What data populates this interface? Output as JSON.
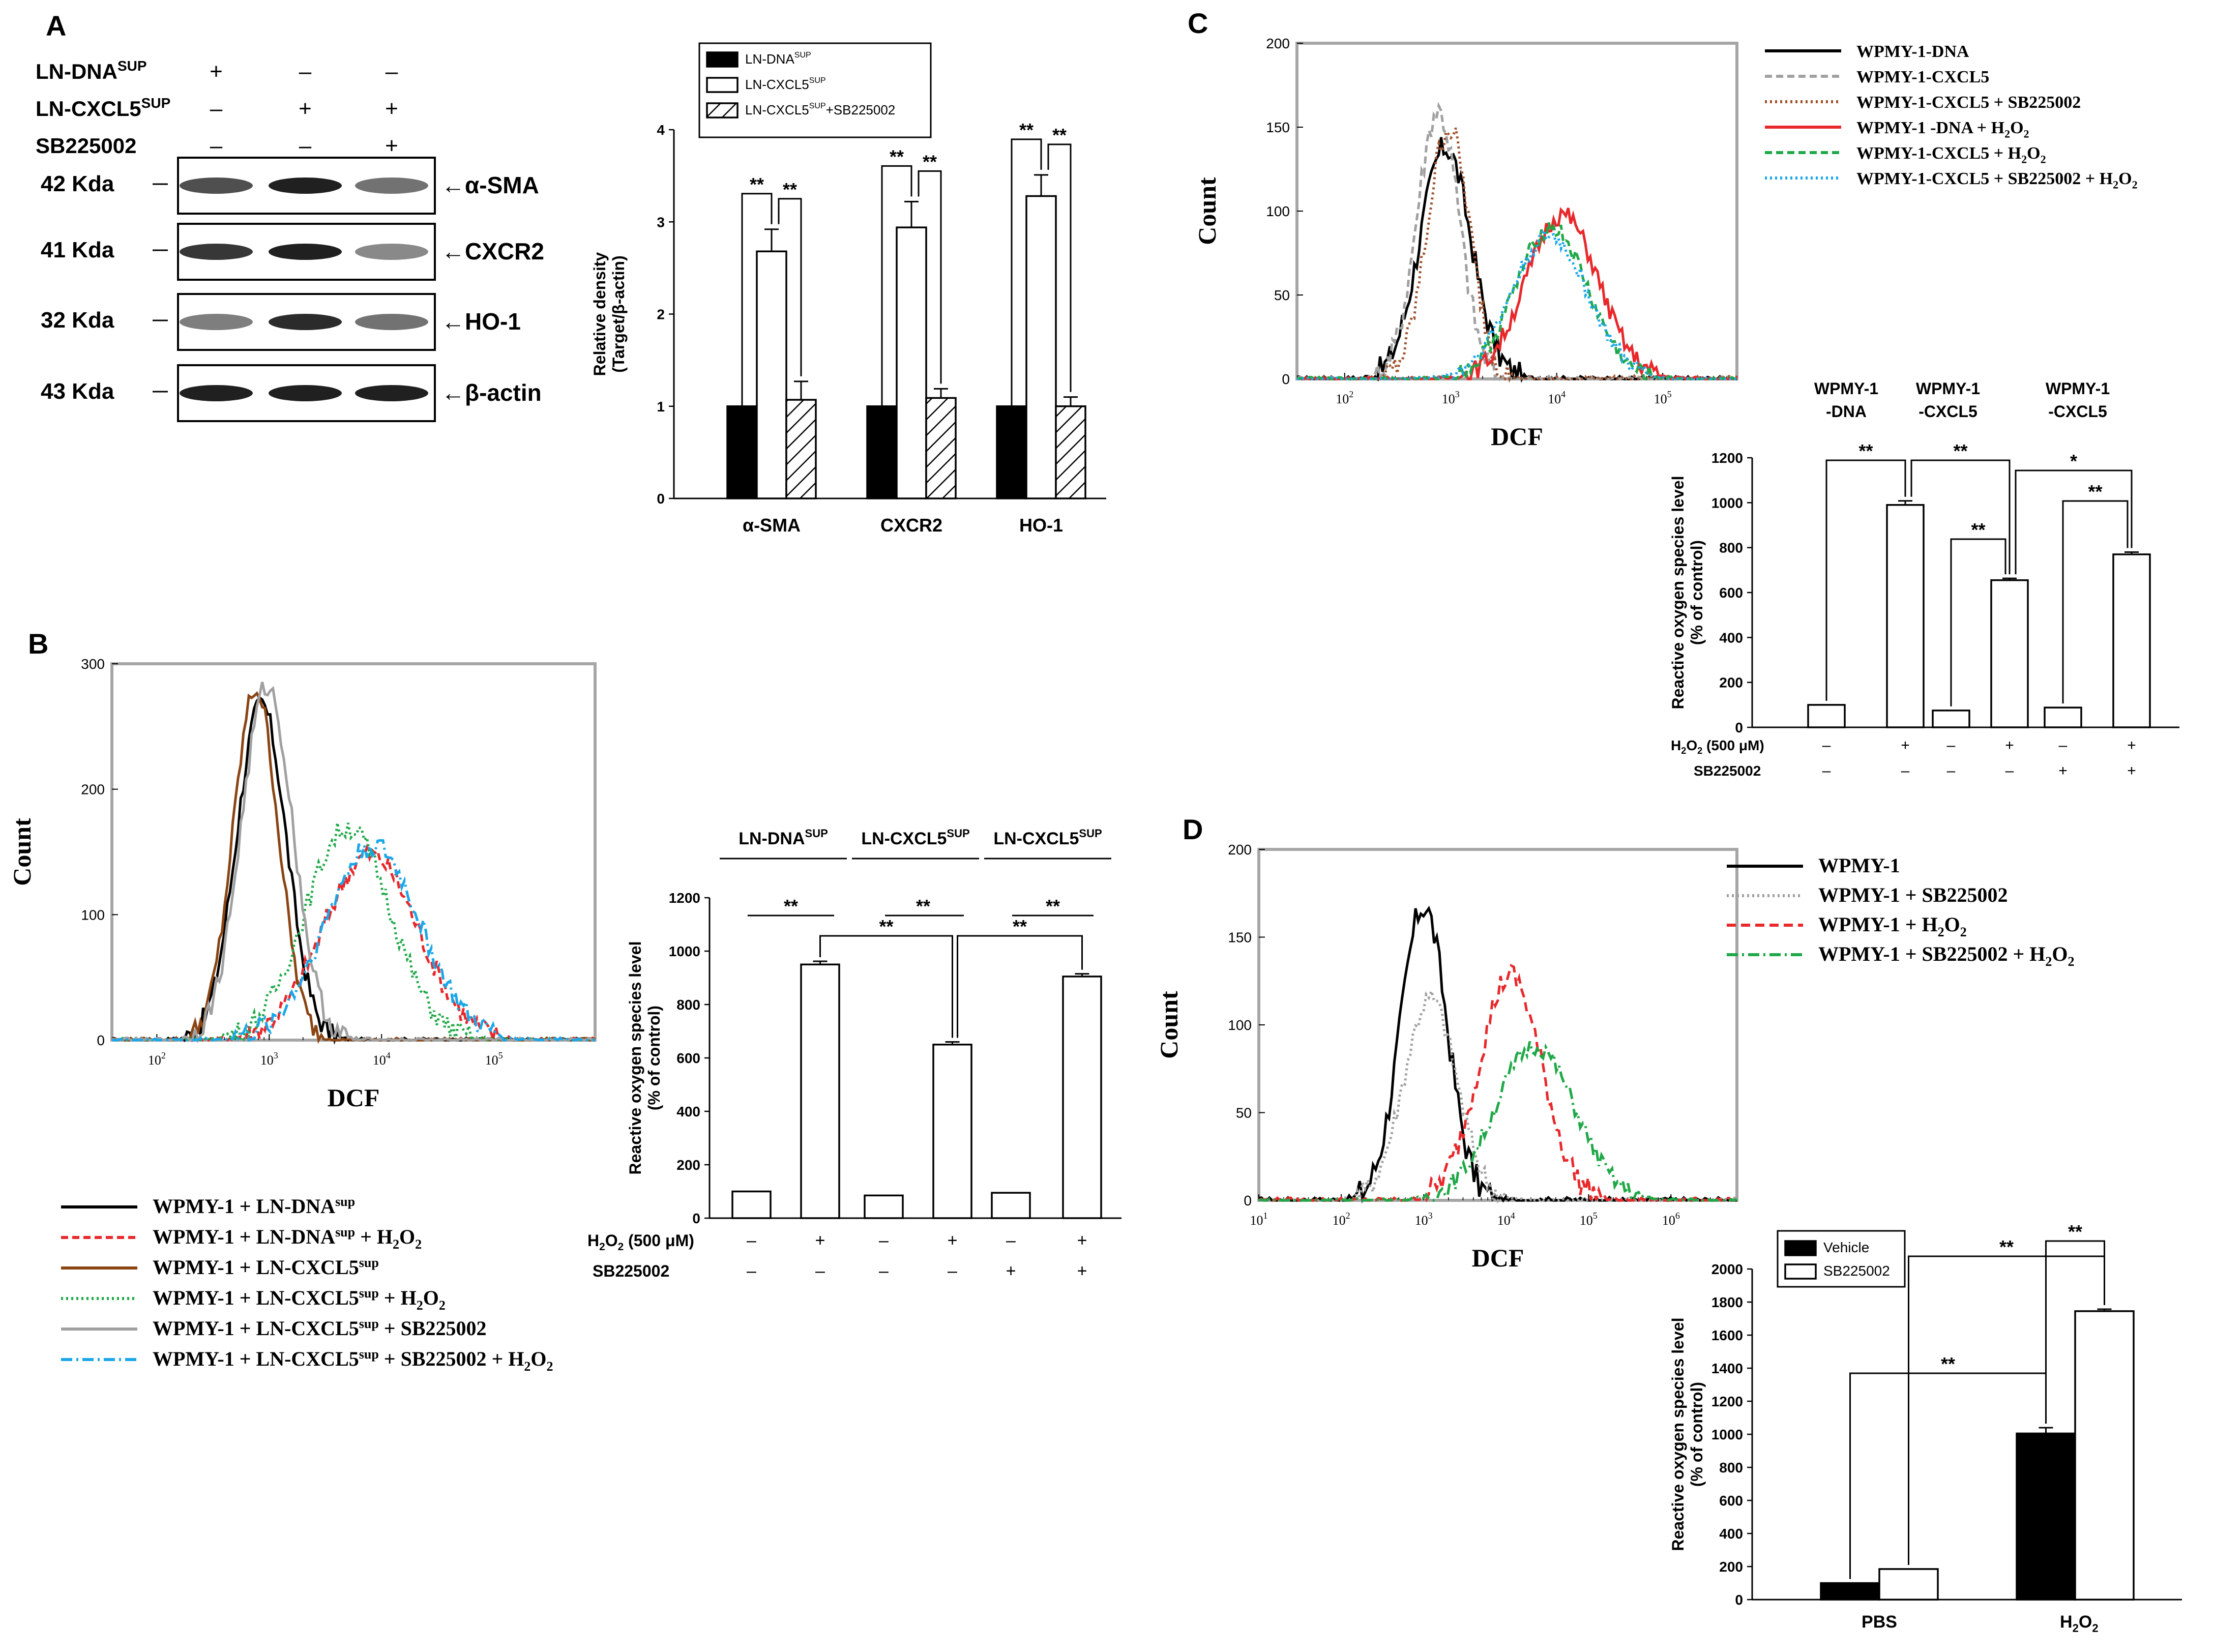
{
  "panelA": {
    "letter": "A",
    "conditions": [
      {
        "label": "LN-DNA",
        "sup": "SUP",
        "signs": [
          "+",
          "–",
          "–"
        ]
      },
      {
        "label": "LN-CXCL5",
        "sup": "SUP",
        "signs": [
          "–",
          "+",
          "+"
        ]
      },
      {
        "label": "SB225002",
        "sup": "",
        "signs": [
          "–",
          "–",
          "+"
        ]
      }
    ],
    "blots": [
      {
        "size": "42 Kda",
        "target": "←α-SMA"
      },
      {
        "size": "41 Kda",
        "target": "←CXCR2"
      },
      {
        "size": "32 Kda",
        "target": "←HO-1"
      },
      {
        "size": "43 Kda",
        "target": "←β-actin"
      }
    ],
    "chart_data": {
      "type": "bar",
      "categories": [
        "α-SMA",
        "CXCR2",
        "HO-1"
      ],
      "series": [
        {
          "name": "LN-DNA SUP",
          "style": "filled",
          "values": [
            1,
            1,
            1
          ],
          "errors": [
            0,
            0,
            0
          ]
        },
        {
          "name": "LN-CXCL5 SUP",
          "style": "open",
          "values": [
            2.68,
            2.94,
            3.28
          ],
          "errors": [
            0.24,
            0.28,
            0.23
          ]
        },
        {
          "name": "LN-CXCL5 SUP+SB225002",
          "style": "hatched",
          "values": [
            1.07,
            1.09,
            1.0
          ],
          "errors": [
            0.2,
            0.1,
            0.1
          ]
        }
      ],
      "legend": [
        "LN-DNA",
        "LN-CXCL5",
        "LN-CXCL5",
        "+SB225002",
        "SUP"
      ],
      "ylabel1": "Relative density",
      "ylabel2": "(Target/β-actin)",
      "ylim": [
        0,
        4
      ],
      "yticks": [
        "0",
        "1",
        "2",
        "3",
        "4"
      ],
      "significance": "**"
    }
  },
  "panelB": {
    "letter": "B",
    "histogram": {
      "type": "line",
      "xlabel": "DCF",
      "ylabel": "Count",
      "ylim": [
        0,
        300
      ],
      "yticks": [
        "0",
        "100",
        "200",
        "300"
      ],
      "xlog_range": [
        1.6,
        5.9
      ],
      "xticks": [
        {
          "base": "10",
          "exp": "2",
          "v": 2
        },
        {
          "base": "10",
          "exp": "3",
          "v": 3
        },
        {
          "base": "10",
          "exp": "4",
          "v": 4
        },
        {
          "base": "10",
          "exp": "5",
          "v": 5
        }
      ],
      "series": [
        {
          "name": "WPMY-1 + LN-DNAsup",
          "color": "#000000",
          "dash": "",
          "mu": 2.93,
          "sigma": 0.22,
          "peak": 268
        },
        {
          "name": "WPMY-1 + LN-DNAsup + H2O2",
          "color": "#e8282b",
          "dash": "14,8",
          "mu": 3.9,
          "sigma": 0.42,
          "peak": 148
        },
        {
          "name": "WPMY-1 + LN-CXCL5sup",
          "color": "#8b4513",
          "dash": "",
          "mu": 2.88,
          "sigma": 0.2,
          "peak": 280
        },
        {
          "name": "WPMY-1 + LN-CXCL5sup + H2O2",
          "color": "#1fa847",
          "dash": "4,6",
          "mu": 3.7,
          "sigma": 0.38,
          "peak": 170
        },
        {
          "name": "WPMY-1 + LN-CXCL5sup + SB225002",
          "color": "#a0a0a0",
          "dash": "",
          "mu": 2.98,
          "sigma": 0.23,
          "peak": 282
        },
        {
          "name": "WPMY-1 + LN-CXCL5sup + SB225002 + H2O2",
          "color": "#1aa7e8",
          "dash": "22,8,4,8",
          "mu": 3.92,
          "sigma": 0.42,
          "peak": 155
        }
      ]
    },
    "legend": [
      {
        "pre": "WPMY-1 + LN-DNA",
        "sup": "sup",
        "post": "",
        "h2o2": false
      },
      {
        "pre": "WPMY-1 + LN-DNA",
        "sup": "sup",
        "post": " + H",
        "h2o2": true
      },
      {
        "pre": "WPMY-1 + LN-CXCL5",
        "sup": "sup",
        "post": "",
        "h2o2": false
      },
      {
        "pre": "WPMY-1 + LN-CXCL5",
        "sup": "sup",
        "post": " + H",
        "h2o2": true
      },
      {
        "pre": "WPMY-1 + LN-CXCL5",
        "sup": "sup",
        "post": " + SB225002",
        "h2o2": false
      },
      {
        "pre": "WPMY-1 + LN-CXCL5",
        "sup": "sup",
        "post": " + SB225002 + H",
        "h2o2": true
      }
    ],
    "bars": {
      "type": "bar",
      "groups": [
        {
          "label": "LN-DNA",
          "sup": "SUP"
        },
        {
          "label": "LN-CXCL5",
          "sup": "SUP"
        },
        {
          "label": "LN-CXCL5",
          "sup": "SUP"
        }
      ],
      "values": [
        100,
        950,
        85,
        650,
        95,
        905
      ],
      "errors": [
        0,
        12,
        0,
        10,
        0,
        10
      ],
      "ylabel1": "Reactive oxygen species level",
      "ylabel2": "(% of control)",
      "ylim": [
        0,
        1200
      ],
      "yticks": [
        "0",
        "200",
        "400",
        "600",
        "800",
        "1000",
        "1200"
      ],
      "row1_label": "H2O2 (500 μM)",
      "row1": [
        "–",
        "+",
        "–",
        "+",
        "–",
        "+"
      ],
      "row2_label": "SB225002",
      "row2": [
        "–",
        "–",
        "–",
        "–",
        "+",
        "+"
      ],
      "significance": "**"
    }
  },
  "panelC": {
    "letter": "C",
    "histogram": {
      "type": "line",
      "xlabel": "DCF",
      "ylabel": "Count",
      "ylim": [
        0,
        200
      ],
      "yticks": [
        "0",
        "50",
        "100",
        "150",
        "200"
      ],
      "xlog_range": [
        1.55,
        5.7
      ],
      "xticks": [
        {
          "base": "10",
          "exp": "2",
          "v": 2
        },
        {
          "base": "10",
          "exp": "3",
          "v": 3
        },
        {
          "base": "10",
          "exp": "4",
          "v": 4
        },
        {
          "base": "10",
          "exp": "5",
          "v": 5
        }
      ],
      "series": [
        {
          "name": "WPMY-1-DNA",
          "color": "#000000",
          "dash": "",
          "mu": 2.95,
          "sigma": 0.24,
          "peak": 138
        },
        {
          "name": "WPMY-1-CXCL5",
          "color": "#a0a0a0",
          "dash": "14,8",
          "mu": 2.88,
          "sigma": 0.2,
          "peak": 160
        },
        {
          "name": "WPMY-1-CXCL5 + SB225002",
          "color": "#a0522d",
          "dash": "4,6",
          "mu": 2.98,
          "sigma": 0.2,
          "peak": 150
        },
        {
          "name": "WPMY-1 -DNA + H2O2",
          "color": "#e8282b",
          "dash": "",
          "mu": 4.05,
          "sigma": 0.34,
          "peak": 98
        },
        {
          "name": "WPMY-1-CXCL5 + H2O2",
          "color": "#1fa847",
          "dash": "14,8",
          "mu": 3.95,
          "sigma": 0.34,
          "peak": 90
        },
        {
          "name": "WPMY-1-CXCL5 + SB225002 + H2O2",
          "color": "#1aa7e8",
          "dash": "4,6",
          "mu": 3.93,
          "sigma": 0.36,
          "peak": 85
        }
      ]
    },
    "legend": [
      {
        "pre": "WPMY-1-DNA",
        "post": "",
        "h2o2": false
      },
      {
        "pre": "WPMY-1-CXCL5",
        "post": "",
        "h2o2": false
      },
      {
        "pre": "WPMY-1-CXCL5 + SB225002",
        "post": "",
        "h2o2": false
      },
      {
        "pre": "WPMY-1 -DNA + H",
        "post": "",
        "h2o2": true
      },
      {
        "pre": "WPMY-1-CXCL5 + H",
        "post": "",
        "h2o2": true
      },
      {
        "pre": "WPMY-1-CXCL5 + SB225002 + H",
        "post": "",
        "h2o2": true
      }
    ],
    "bars": {
      "type": "bar",
      "groups": [
        {
          "l1": "WPMY-1",
          "l2": "-DNA"
        },
        {
          "l1": "WPMY-1",
          "l2": "-CXCL5"
        },
        {
          "l1": "WPMY-1",
          "l2": "-CXCL5"
        }
      ],
      "values": [
        100,
        990,
        75,
        655,
        88,
        770
      ],
      "errors": [
        0,
        18,
        0,
        8,
        0,
        10
      ],
      "ylabel1": "Reactive oxygen species level",
      "ylabel2": "(% of control)",
      "ylim": [
        0,
        1200
      ],
      "yticks": [
        "0",
        "200",
        "400",
        "600",
        "800",
        "1000",
        "1200"
      ],
      "row1_label": "H2O2 (500 μM)",
      "row1": [
        "–",
        "+",
        "–",
        "+",
        "–",
        "+"
      ],
      "row2_label": "SB225002",
      "row2": [
        "–",
        "–",
        "–",
        "–",
        "+",
        "+"
      ],
      "significance": [
        "**",
        "**",
        "**",
        "*",
        "**"
      ]
    }
  },
  "panelD": {
    "letter": "D",
    "histogram": {
      "type": "line",
      "xlabel": "DCF",
      "ylabel": "Count",
      "ylim": [
        0,
        200
      ],
      "yticks": [
        "0",
        "50",
        "100",
        "150",
        "200"
      ],
      "xlog_range": [
        1.0,
        6.8
      ],
      "xticks": [
        {
          "base": "10",
          "exp": "1",
          "v": 1
        },
        {
          "base": "10",
          "exp": "2",
          "v": 2
        },
        {
          "base": "10",
          "exp": "3",
          "v": 3
        },
        {
          "base": "10",
          "exp": "4",
          "v": 4
        },
        {
          "base": "10",
          "exp": "5",
          "v": 5
        },
        {
          "base": "10",
          "exp": "6",
          "v": 6
        }
      ],
      "series": [
        {
          "name": "WPMY-1",
          "color": "#000000",
          "dash": "",
          "mu": 3.0,
          "sigma": 0.28,
          "peak": 168
        },
        {
          "name": "WPMY-1 + SB225002",
          "color": "#a0a0a0",
          "dash": "4,6",
          "mu": 3.08,
          "sigma": 0.32,
          "peak": 115
        },
        {
          "name": "WPMY-1 + H2O2",
          "color": "#e8282b",
          "dash": "18,10",
          "mu": 4.05,
          "sigma": 0.38,
          "peak": 128
        },
        {
          "name": "WPMY-1 + SB225002 + H2O2",
          "color": "#1fa847",
          "dash": "22,8,4,8",
          "mu": 4.35,
          "sigma": 0.48,
          "peak": 88
        }
      ]
    },
    "legend": [
      {
        "pre": "WPMY-1",
        "post": "",
        "h2o2": false
      },
      {
        "pre": "WPMY-1 + SB225002",
        "post": "",
        "h2o2": false
      },
      {
        "pre": "WPMY-1 + H",
        "post": "",
        "h2o2": true
      },
      {
        "pre": "WPMY-1 + SB225002 + H",
        "post": "",
        "h2o2": true
      }
    ],
    "bars": {
      "type": "bar",
      "categories": [
        "PBS",
        "H2O2"
      ],
      "series": [
        {
          "name": "Vehicle",
          "style": "filled",
          "values": [
            100,
            1005
          ],
          "errors": [
            0,
            35
          ]
        },
        {
          "name": "SB225002",
          "style": "open",
          "values": [
            185,
            1745
          ],
          "errors": [
            0,
            12
          ]
        }
      ],
      "ylabel1": "Reactive oxygen species level",
      "ylabel2": "(% of control)",
      "ylim": [
        0,
        2000
      ],
      "yticks": [
        "0",
        "200",
        "400",
        "600",
        "800",
        "1000",
        "1200",
        "1400",
        "1600",
        "1800",
        "2000"
      ],
      "significance": "**"
    }
  }
}
